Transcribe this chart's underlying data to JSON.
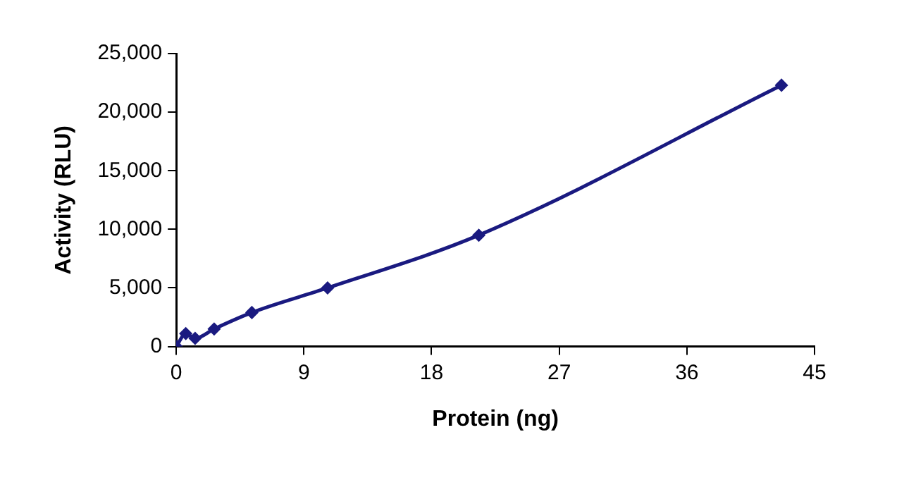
{
  "chart_data": {
    "type": "line",
    "xlabel": "Protein (ng)",
    "ylabel": "Activity (RLU)",
    "x": [
      0,
      0.67,
      1.33,
      2.67,
      5.33,
      10.67,
      21.33,
      42.67
    ],
    "series": [
      {
        "color": "#1a1a80",
        "values": [
          0,
          1100,
          700,
          1500,
          2900,
          5000,
          9500,
          22300
        ]
      }
    ],
    "xlim": [
      0,
      45
    ],
    "xticks": [
      0,
      9,
      18,
      27,
      36,
      45
    ],
    "ylim": [
      0,
      25000
    ],
    "yticks": [
      0,
      {
        "value": 5000,
        "label": "5,000"
      },
      {
        "value": 10000,
        "label": "10,000"
      },
      {
        "value": 15000,
        "label": "15,000"
      },
      {
        "value": 20000,
        "label": "20,000"
      },
      {
        "value": 25000,
        "label": "25,000"
      }
    ],
    "grid": false,
    "legend": false,
    "marker": "diamond",
    "line_style": "solid"
  }
}
